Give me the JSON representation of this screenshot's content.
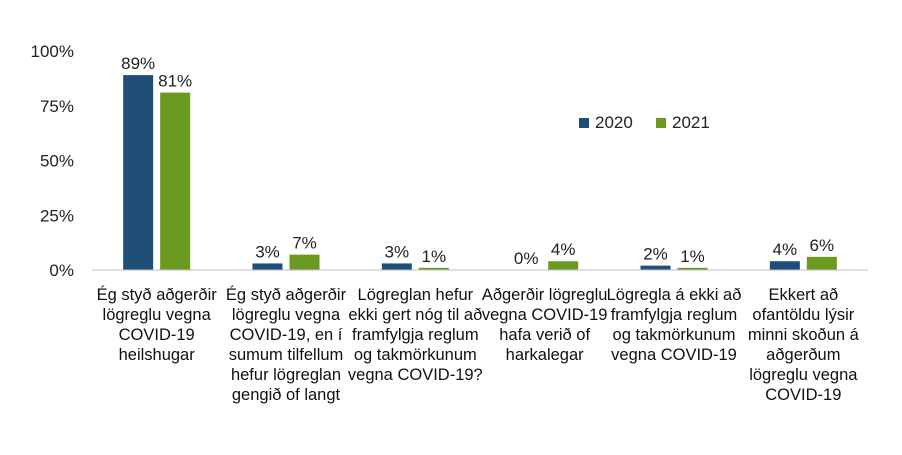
{
  "chart_data": {
    "type": "bar",
    "categories": [
      "Ég styð aðgerðir lögreglu vegna COVID-19 heilshugar",
      "Ég styð aðgerðir lögreglu vegna COVID-19, en í sumum tilfellum hefur lögreglan gengið of langt",
      "Lögreglan hefur ekki gert nóg til að framfylgja reglum og takmörkunum vegna COVID-19?",
      "Aðgerðir lögreglu vegna COVID-19 hafa verið of harkalegar",
      "Lögregla á ekki að framfylgja reglum og takmörkunum vegna COVID-19",
      "Ekkert að ofantöldu lýsir minni skoðun á aðgerðum lögreglu vegna COVID-19"
    ],
    "category_lines": [
      [
        "Ég styð aðgerðir",
        "lögreglu vegna",
        "COVID-19",
        "heilshugar"
      ],
      [
        "Ég styð aðgerðir",
        "lögreglu vegna",
        "COVID-19, en í",
        "sumum tilfellum",
        "hefur lögreglan",
        "gengið of langt"
      ],
      [
        "Lögreglan hefur",
        "ekki gert nóg til að",
        "framfylgja reglum",
        "og takmörkunum",
        "vegna COVID-19?"
      ],
      [
        "Aðgerðir lögreglu",
        "vegna COVID-19",
        "hafa verið of",
        "harkalegar"
      ],
      [
        "Lögregla á ekki að",
        "framfylgja reglum",
        "og takmörkunum",
        "vegna COVID-19"
      ],
      [
        "Ekkert að",
        "ofantöldu lýsir",
        "minni skoðun á",
        "aðgerðum",
        "lögreglu vegna",
        "COVID-19"
      ]
    ],
    "series": [
      {
        "name": "2020",
        "color": "#1f4e79",
        "values": [
          89,
          3,
          3,
          0,
          2,
          4
        ],
        "labels": [
          "89%",
          "3%",
          "3%",
          "0%",
          "2%",
          "4%"
        ]
      },
      {
        "name": "2021",
        "color": "#6a9a1f",
        "values": [
          81,
          7,
          1,
          4,
          1,
          6
        ],
        "labels": [
          "81%",
          "7%",
          "1%",
          "4%",
          "1%",
          "6%"
        ]
      }
    ],
    "ylim": [
      0,
      100
    ],
    "yticks": [
      0,
      25,
      50,
      75,
      100
    ],
    "ytick_labels": [
      "0%",
      "25%",
      "50%",
      "75%",
      "100%"
    ],
    "legend_position": "top-right",
    "grid": false
  }
}
